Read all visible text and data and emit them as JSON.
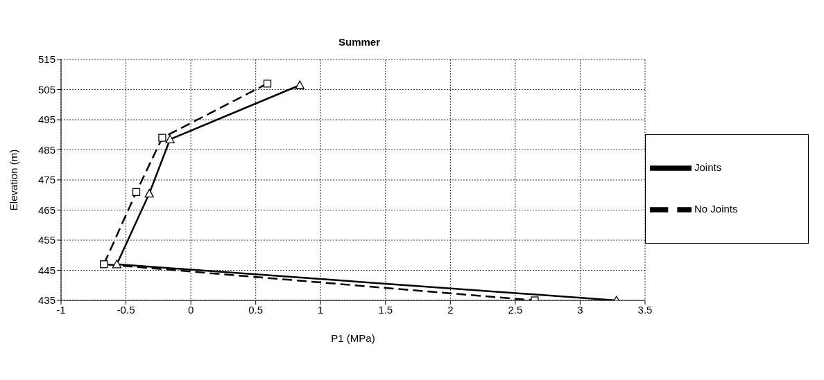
{
  "chart_data": {
    "type": "line",
    "title": "Summer",
    "xlabel": "P1 (MPa)",
    "ylabel": "Elevation (m)",
    "xlim": [
      -1,
      3.5
    ],
    "xticks": [
      -1,
      -0.5,
      0,
      0.5,
      1,
      1.5,
      2,
      2.5,
      3,
      3.5
    ],
    "ylim": [
      435,
      515
    ],
    "yticks": [
      435,
      445,
      455,
      465,
      475,
      485,
      495,
      505,
      515
    ],
    "grid": true,
    "legend": "right",
    "series": [
      {
        "name": "No Joints",
        "color": "#000000",
        "marker": "square",
        "line_style": "dashed",
        "x": [
          0.59,
          -0.22,
          -0.42,
          -0.67,
          2.65
        ],
        "values": [
          507,
          489,
          471,
          447,
          435
        ]
      },
      {
        "name": "Joints",
        "color": "#000000",
        "marker": "triangle",
        "line_style": "solid",
        "x": [
          0.84,
          -0.16,
          -0.32,
          -0.57,
          3.28
        ],
        "values": [
          506.5,
          488.5,
          470.5,
          447,
          435
        ]
      }
    ]
  }
}
